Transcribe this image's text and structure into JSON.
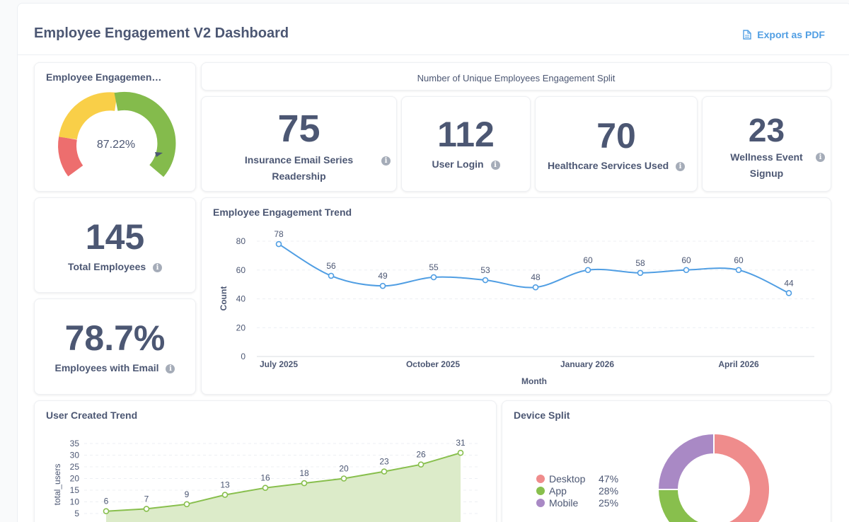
{
  "header": {
    "title": "Employee Engagement V2 Dashboard",
    "export_label": "Export as PDF",
    "export_icon": "document-icon"
  },
  "gauge": {
    "title": "Employee Engagemen…",
    "value_label": "87.22%",
    "value": 87.22,
    "segment_colors": [
      "#ed6e6e",
      "#f9cf48",
      "#84bb4c"
    ]
  },
  "split_title": "Number of Unique Employees Engagement Split",
  "scalars": {
    "insurance": {
      "value": "75",
      "label_line1": "Insurance Email Series",
      "label_line2": "Readership"
    },
    "user_login": {
      "value": "112",
      "label": "User Login"
    },
    "healthcare": {
      "value": "70",
      "label": "Healthcare Services Used"
    },
    "wellness": {
      "value": "23",
      "label_line1": "Wellness Event",
      "label_line2": "Signup"
    },
    "total_employees": {
      "value": "145",
      "label": "Total Employees"
    },
    "email": {
      "value": "78.7%",
      "label": "Employees with Email"
    }
  },
  "info_icon": "i",
  "engagement_trend": {
    "title": "Employee Engagement Trend",
    "xlabel": "Month",
    "ylabel": "Count"
  },
  "user_trend": {
    "title": "User Created Trend",
    "ylabel": "total_users"
  },
  "device_split": {
    "title": "Device Split",
    "legend": [
      {
        "name": "Desktop",
        "pct": "47%",
        "color": "#ef8c8c"
      },
      {
        "name": "App",
        "pct": "28%",
        "color": "#88bf4d"
      },
      {
        "name": "Mobile",
        "pct": "25%",
        "color": "#a989c5"
      }
    ]
  },
  "chart_data": [
    {
      "type": "line",
      "title": "Employee Engagement Trend",
      "xlabel": "Month",
      "ylabel": "Count",
      "x_tick_labels": [
        "July 2025",
        "October 2025",
        "January 2026",
        "April 2026"
      ],
      "values": [
        78,
        56,
        49,
        55,
        53,
        48,
        60,
        58,
        60,
        60,
        44
      ],
      "ylim": [
        0,
        80
      ],
      "y_ticks": [
        0,
        20,
        40,
        60,
        80
      ],
      "color": "#509ee3",
      "grid": true
    },
    {
      "type": "area",
      "title": "User Created Trend",
      "ylabel": "total_users",
      "values": [
        6,
        7,
        9,
        13,
        16,
        18,
        20,
        23,
        26,
        31
      ],
      "ylim": [
        0,
        35
      ],
      "y_ticks": [
        5,
        10,
        15,
        20,
        25,
        30,
        35
      ],
      "color": "#88bf4d",
      "grid": true
    },
    {
      "type": "pie",
      "title": "Device Split",
      "categories": [
        "Desktop",
        "App",
        "Mobile"
      ],
      "values": [
        47,
        28,
        25
      ],
      "colors": [
        "#ef8c8c",
        "#88bf4d",
        "#a989c5"
      ],
      "legend_position": "left"
    }
  ]
}
